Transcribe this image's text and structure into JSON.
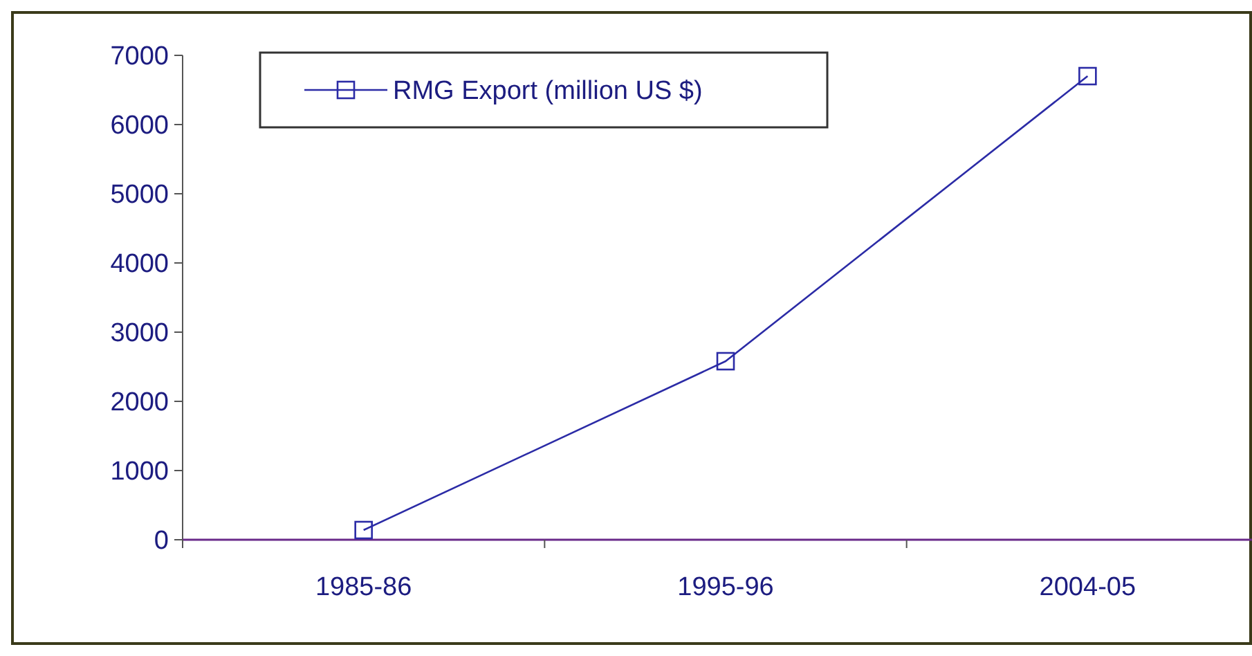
{
  "chart_data": {
    "type": "line",
    "categories": [
      "1985-86",
      "1995-96",
      "2004-05"
    ],
    "series": [
      {
        "name": "RMG Export (million US $)",
        "color": "#2b2ba6",
        "values": [
          140,
          2580,
          6700
        ]
      }
    ],
    "ylim": [
      0,
      7000
    ],
    "yticks": [
      0,
      1000,
      2000,
      3000,
      4000,
      5000,
      6000,
      7000
    ],
    "grid": false,
    "legend": "top left",
    "marker": "square",
    "line_style": "solid"
  }
}
